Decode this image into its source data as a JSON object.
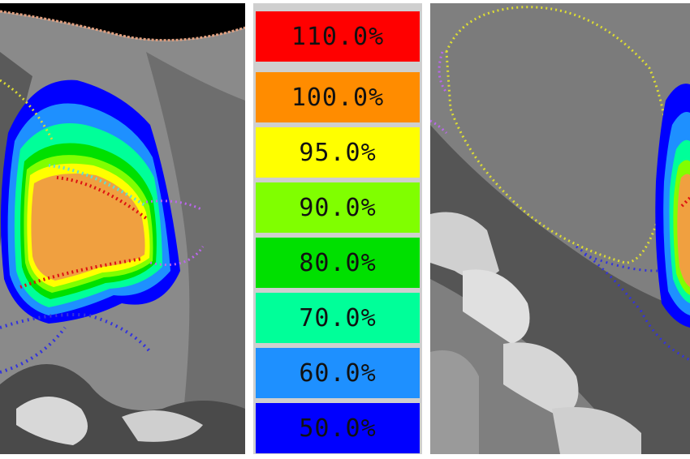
{
  "legend": {
    "levels": [
      {
        "label": "110.0%",
        "color": "#ff0000"
      },
      {
        "label": "100.0%",
        "color": "#ff8c00"
      },
      {
        "label": "95.0%",
        "color": "#ffff00"
      },
      {
        "label": "90.0%",
        "color": "#80ff00"
      },
      {
        "label": "80.0%",
        "color": "#00e000"
      },
      {
        "label": "70.0%",
        "color": "#00ff99"
      },
      {
        "label": "60.0%",
        "color": "#1e90ff"
      },
      {
        "label": "50.0%",
        "color": "#0000ff"
      }
    ]
  },
  "scan_colors": {
    "ct_dark": "#2a2a2a",
    "ct_mid": "#7a7a7a",
    "ct_light": "#a8a8a8",
    "bone": "#e8e8e8",
    "air": "#000000",
    "contour_yellow": "#dddd33",
    "contour_blue": "#3333dd",
    "contour_red": "#dd1111",
    "contour_cyan": "#66ddcc",
    "contour_purple": "#bb66ee",
    "contour_skin": "#e0a080"
  }
}
